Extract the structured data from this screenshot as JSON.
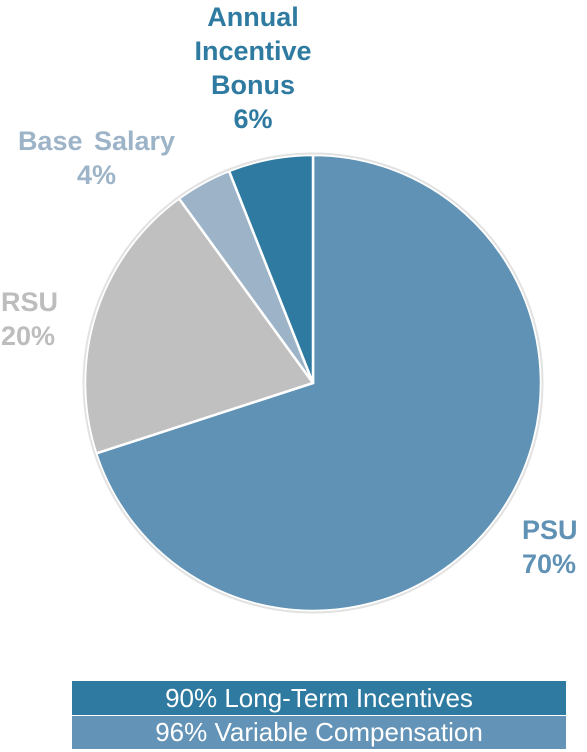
{
  "chart_data": {
    "type": "pie",
    "slices": [
      {
        "label": "PSU",
        "value": 70,
        "value_label": "70%",
        "color": "#5f92b4",
        "label_color": "#5f92b4"
      },
      {
        "label": "RSU",
        "value": 20,
        "value_label": "20%",
        "color": "#c0c0c0",
        "label_color": "#bdbdbd"
      },
      {
        "label": "Base Salary",
        "value": 4,
        "value_label": "4%",
        "color": "#9db4c8",
        "label_color": "#9db4c8"
      },
      {
        "label": "Annual Incentive Bonus",
        "label_lines": [
          "Annual",
          "Incentive",
          "Bonus"
        ],
        "value": 6,
        "value_label": "6%",
        "color": "#2e7aa0",
        "label_color": "#2e7aa0"
      }
    ],
    "start_angle_deg": 0,
    "direction": "clockwise"
  },
  "summary": {
    "long_term": "90% Long-Term Incentives",
    "variable": "96% Variable Compensation",
    "long_term_color": "#2e7aa0",
    "variable_color": "#6393b6"
  }
}
